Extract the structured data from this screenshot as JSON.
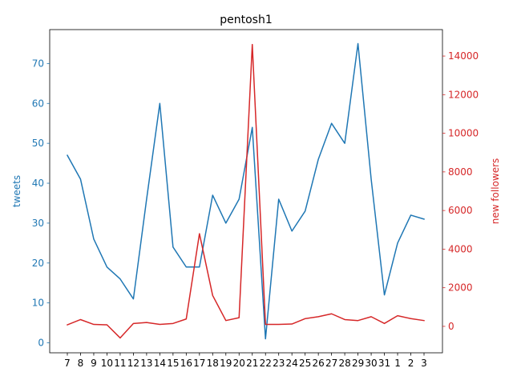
{
  "chart_data": {
    "type": "line",
    "title": "pentosh1",
    "categories": [
      "7",
      "8",
      "9",
      "10",
      "11",
      "12",
      "13",
      "14",
      "15",
      "16",
      "17",
      "18",
      "19",
      "20",
      "21",
      "22",
      "23",
      "24",
      "25",
      "26",
      "27",
      "28",
      "29",
      "30",
      "31",
      "1",
      "2",
      "3"
    ],
    "series": [
      {
        "name": "tweets",
        "axis": "left",
        "color": "#1f77b4",
        "values": [
          47,
          41,
          26,
          19,
          16,
          11,
          36,
          60,
          24,
          19,
          19,
          37,
          30,
          36,
          54,
          1,
          36,
          28,
          33,
          46,
          55,
          50,
          75,
          41,
          12,
          25,
          32,
          31
        ]
      },
      {
        "name": "new followers",
        "axis": "right",
        "color": "#d62728",
        "values": [
          80,
          350,
          100,
          80,
          -600,
          150,
          200,
          100,
          150,
          380,
          4800,
          1600,
          300,
          450,
          14600,
          100,
          100,
          120,
          400,
          500,
          650,
          350,
          300,
          500,
          150,
          550,
          400,
          300
        ]
      }
    ],
    "left_axis": {
      "label": "tweets",
      "ylim": [
        -2.5,
        78.5
      ],
      "ticks": [
        0,
        10,
        20,
        30,
        40,
        50,
        60,
        70
      ]
    },
    "right_axis": {
      "label": "new followers",
      "ylim": [
        -1370,
        15370
      ],
      "ticks": [
        0,
        2000,
        4000,
        6000,
        8000,
        10000,
        12000,
        14000
      ]
    },
    "grid": false,
    "legend": "none"
  }
}
